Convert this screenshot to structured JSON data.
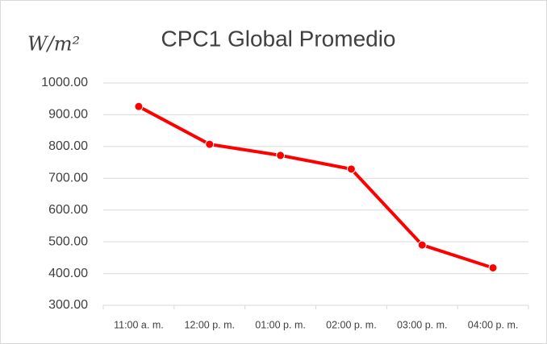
{
  "chart_data": {
    "type": "line",
    "title": "CPC1 Global Promedio",
    "y_label": "W/m²",
    "categories": [
      "11:00 a. m.",
      "12:00 p. m.",
      "01:00 p. m.",
      "02:00 p. m.",
      "03:00 p. m.",
      "04:00 p. m."
    ],
    "series": [
      {
        "name": "CPC1 Global Promedio",
        "color": "#ff0000",
        "values": [
          926,
          807,
          772,
          729,
          490,
          418
        ]
      }
    ],
    "ylim": [
      300,
      1000
    ],
    "yticks": [
      {
        "value": 300,
        "label": "300.00"
      },
      {
        "value": 400,
        "label": "400.00"
      },
      {
        "value": 500,
        "label": "500.00"
      },
      {
        "value": 600,
        "label": "600.00"
      },
      {
        "value": 700,
        "label": "700.00"
      },
      {
        "value": 800,
        "label": "800.00"
      },
      {
        "value": 900,
        "label": "900.00"
      },
      {
        "value": 1000,
        "label": "1000.00"
      }
    ],
    "grid": true
  }
}
